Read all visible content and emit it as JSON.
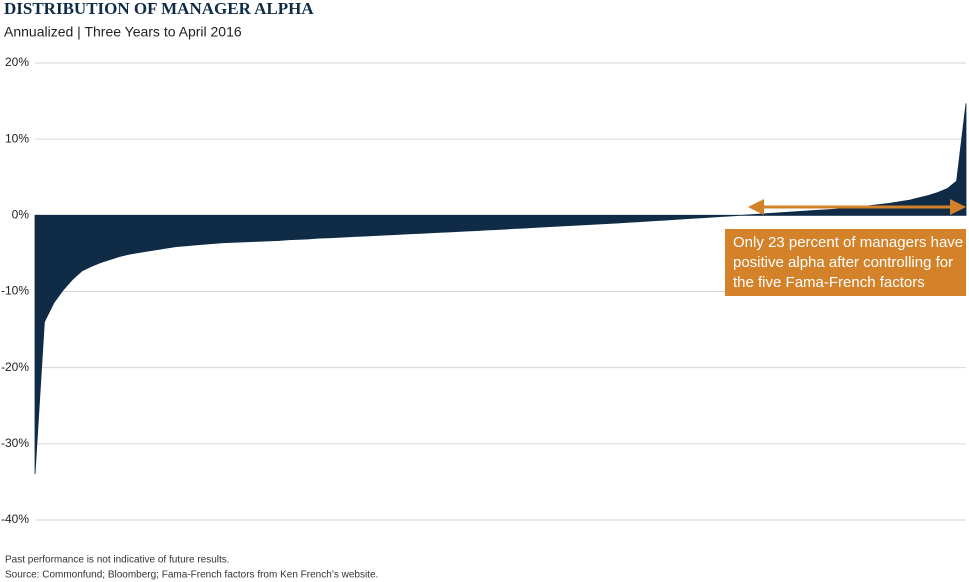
{
  "chart_data": {
    "type": "area",
    "title": "DISTRIBUTION OF MANAGER ALPHA",
    "subtitle": "Annualized | Three Years to April 2016",
    "values": [
      -34,
      -14,
      -11.5,
      -9.8,
      -8.4,
      -7.3,
      -6.7,
      -6.2,
      -5.8,
      -5.4,
      -5.1,
      -4.9,
      -4.7,
      -4.5,
      -4.3,
      -4.1,
      -4.0,
      -3.9,
      -3.8,
      -3.7,
      -3.6,
      -3.55,
      -3.5,
      -3.45,
      -3.4,
      -3.35,
      -3.3,
      -3.2,
      -3.15,
      -3.1,
      -3.0,
      -2.95,
      -2.9,
      -2.84,
      -2.78,
      -2.72,
      -2.66,
      -2.6,
      -2.54,
      -2.48,
      -2.42,
      -2.36,
      -2.3,
      -2.24,
      -2.18,
      -2.12,
      -2.06,
      -2.0,
      -1.93,
      -1.87,
      -1.8,
      -1.73,
      -1.67,
      -1.6,
      -1.53,
      -1.47,
      -1.4,
      -1.33,
      -1.27,
      -1.2,
      -1.13,
      -1.07,
      -1.0,
      -0.92,
      -0.85,
      -0.77,
      -0.69,
      -0.62,
      -0.54,
      -0.46,
      -0.38,
      -0.31,
      -0.23,
      -0.15,
      -0.08,
      0,
      0.08,
      0.16,
      0.24,
      0.32,
      0.4,
      0.48,
      0.56,
      0.64,
      0.72,
      0.8,
      0.9,
      1.0,
      1.15,
      1.3,
      1.45,
      1.6,
      1.8,
      2.0,
      2.3,
      2.6,
      3.0,
      3.5,
      4.5,
      14.7
    ],
    "color": "#0f2b46",
    "ylim": [
      -40,
      20
    ],
    "yticks": [
      {
        "value": -40,
        "label": "-40%"
      },
      {
        "value": -30,
        "label": "-30%"
      },
      {
        "value": -20,
        "label": "-20%"
      },
      {
        "value": -10,
        "label": "-10%"
      },
      {
        "value": 0,
        "label": "0%"
      },
      {
        "value": 10,
        "label": "10%"
      },
      {
        "value": 20,
        "label": "20%"
      }
    ],
    "grid": true,
    "annotation": [
      "Only 23 percent of managers have",
      "positive alpha after controlling for",
      "the five Fama-French factors"
    ],
    "annotation_color": "#d4822a",
    "notes": [
      "Past performance is not indicative of future results.",
      "Source: Commonfund; Bloomberg; Fama-French factors from Ken French’s website."
    ]
  }
}
